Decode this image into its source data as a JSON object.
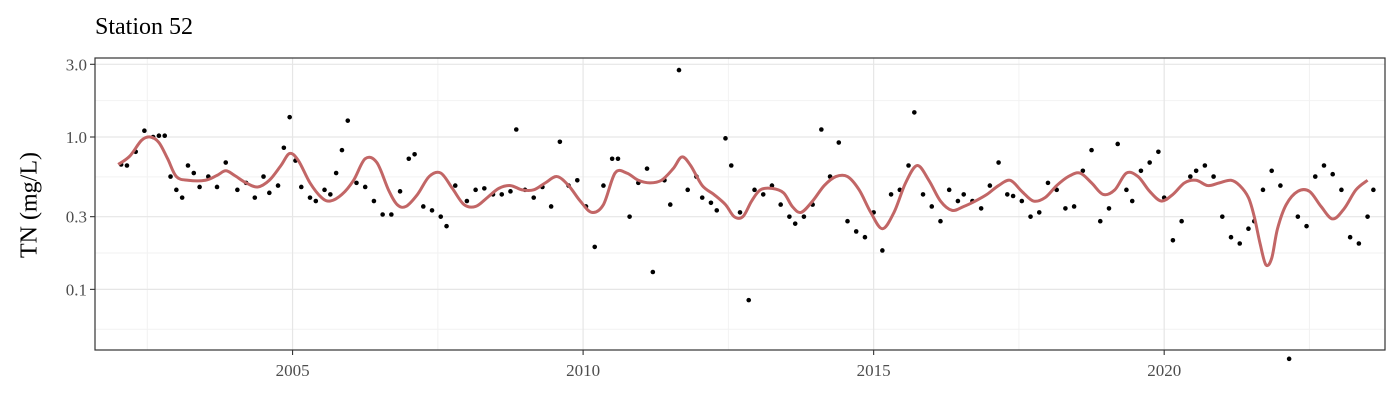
{
  "chart_data": {
    "type": "scatter",
    "title": "Station 52",
    "ylabel": "TN (mg/L)",
    "xlabel": "",
    "y_scale": "log",
    "ylim": [
      0.04,
      3.3
    ],
    "xlim": [
      2001.6,
      2023.8
    ],
    "y_ticks": [
      3.0,
      1.0,
      0.3,
      0.1
    ],
    "y_tick_labels": [
      "3.0",
      "1.0",
      "0.3",
      "0.1"
    ],
    "x_ticks": [
      2005,
      2010,
      2015,
      2020
    ],
    "x_tick_labels": [
      "2005",
      "2010",
      "2015",
      "2020"
    ],
    "grid": true,
    "series": [
      {
        "type": "points",
        "color": "#000000",
        "points": [
          [
            2002.05,
            0.66
          ],
          [
            2002.15,
            0.65
          ],
          [
            2002.3,
            0.8
          ],
          [
            2002.45,
            1.1
          ],
          [
            2002.6,
            1.0
          ],
          [
            2002.7,
            1.02
          ],
          [
            2002.8,
            1.02
          ],
          [
            2002.9,
            0.55
          ],
          [
            2003.0,
            0.45
          ],
          [
            2003.1,
            0.4
          ],
          [
            2003.2,
            0.65
          ],
          [
            2003.3,
            0.58
          ],
          [
            2003.4,
            0.47
          ],
          [
            2003.55,
            0.55
          ],
          [
            2003.7,
            0.47
          ],
          [
            2003.85,
            0.68
          ],
          [
            2004.05,
            0.45
          ],
          [
            2004.2,
            0.5
          ],
          [
            2004.35,
            0.4
          ],
          [
            2004.5,
            0.55
          ],
          [
            2004.6,
            0.43
          ],
          [
            2004.75,
            0.48
          ],
          [
            2004.85,
            0.85
          ],
          [
            2004.95,
            1.35
          ],
          [
            2005.05,
            0.7
          ],
          [
            2005.15,
            0.47
          ],
          [
            2005.3,
            0.4
          ],
          [
            2005.4,
            0.38
          ],
          [
            2005.55,
            0.45
          ],
          [
            2005.65,
            0.42
          ],
          [
            2005.75,
            0.58
          ],
          [
            2005.85,
            0.82
          ],
          [
            2005.95,
            1.28
          ],
          [
            2006.1,
            0.5
          ],
          [
            2006.25,
            0.47
          ],
          [
            2006.4,
            0.38
          ],
          [
            2006.55,
            0.31
          ],
          [
            2006.7,
            0.31
          ],
          [
            2006.85,
            0.44
          ],
          [
            2007.0,
            0.72
          ],
          [
            2007.1,
            0.77
          ],
          [
            2007.25,
            0.35
          ],
          [
            2007.4,
            0.33
          ],
          [
            2007.55,
            0.3
          ],
          [
            2007.65,
            0.26
          ],
          [
            2007.8,
            0.48
          ],
          [
            2008.0,
            0.38
          ],
          [
            2008.15,
            0.45
          ],
          [
            2008.3,
            0.46
          ],
          [
            2008.45,
            0.42
          ],
          [
            2008.6,
            0.42
          ],
          [
            2008.75,
            0.44
          ],
          [
            2008.85,
            1.12
          ],
          [
            2009.0,
            0.45
          ],
          [
            2009.15,
            0.4
          ],
          [
            2009.3,
            0.47
          ],
          [
            2009.45,
            0.35
          ],
          [
            2009.6,
            0.93
          ],
          [
            2009.75,
            0.48
          ],
          [
            2009.9,
            0.52
          ],
          [
            2010.05,
            0.35
          ],
          [
            2010.2,
            0.19
          ],
          [
            2010.35,
            0.48
          ],
          [
            2010.5,
            0.72
          ],
          [
            2010.6,
            0.72
          ],
          [
            2010.8,
            0.3
          ],
          [
            2010.95,
            0.5
          ],
          [
            2011.1,
            0.62
          ],
          [
            2011.2,
            0.13
          ],
          [
            2011.4,
            0.52
          ],
          [
            2011.5,
            0.36
          ],
          [
            2011.65,
            2.75
          ],
          [
            2011.8,
            0.45
          ],
          [
            2011.95,
            0.55
          ],
          [
            2012.05,
            0.4
          ],
          [
            2012.2,
            0.37
          ],
          [
            2012.3,
            0.33
          ],
          [
            2012.45,
            0.98
          ],
          [
            2012.55,
            0.65
          ],
          [
            2012.7,
            0.32
          ],
          [
            2012.85,
            0.085
          ],
          [
            2012.95,
            0.45
          ],
          [
            2013.1,
            0.42
          ],
          [
            2013.25,
            0.48
          ],
          [
            2013.4,
            0.36
          ],
          [
            2013.55,
            0.3
          ],
          [
            2013.65,
            0.27
          ],
          [
            2013.8,
            0.3
          ],
          [
            2013.95,
            0.36
          ],
          [
            2014.1,
            1.12
          ],
          [
            2014.25,
            0.55
          ],
          [
            2014.4,
            0.92
          ],
          [
            2014.55,
            0.28
          ],
          [
            2014.7,
            0.24
          ],
          [
            2014.85,
            0.22
          ],
          [
            2015.0,
            0.32
          ],
          [
            2015.15,
            0.18
          ],
          [
            2015.3,
            0.42
          ],
          [
            2015.45,
            0.45
          ],
          [
            2015.6,
            0.65
          ],
          [
            2015.7,
            1.45
          ],
          [
            2015.85,
            0.42
          ],
          [
            2016.0,
            0.35
          ],
          [
            2016.15,
            0.28
          ],
          [
            2016.3,
            0.45
          ],
          [
            2016.45,
            0.38
          ],
          [
            2016.55,
            0.42
          ],
          [
            2016.7,
            0.38
          ],
          [
            2016.85,
            0.34
          ],
          [
            2017.0,
            0.48
          ],
          [
            2017.15,
            0.68
          ],
          [
            2017.3,
            0.42
          ],
          [
            2017.4,
            0.41
          ],
          [
            2017.55,
            0.38
          ],
          [
            2017.7,
            0.3
          ],
          [
            2017.85,
            0.32
          ],
          [
            2018.0,
            0.5
          ],
          [
            2018.15,
            0.45
          ],
          [
            2018.3,
            0.34
          ],
          [
            2018.45,
            0.35
          ],
          [
            2018.6,
            0.6
          ],
          [
            2018.75,
            0.82
          ],
          [
            2018.9,
            0.28
          ],
          [
            2019.05,
            0.34
          ],
          [
            2019.2,
            0.9
          ],
          [
            2019.35,
            0.45
          ],
          [
            2019.45,
            0.38
          ],
          [
            2019.6,
            0.6
          ],
          [
            2019.75,
            0.68
          ],
          [
            2019.9,
            0.8
          ],
          [
            2020.0,
            0.4
          ],
          [
            2020.15,
            0.21
          ],
          [
            2020.3,
            0.28
          ],
          [
            2020.45,
            0.55
          ],
          [
            2020.55,
            0.6
          ],
          [
            2020.7,
            0.65
          ],
          [
            2020.85,
            0.55
          ],
          [
            2021.0,
            0.3
          ],
          [
            2021.15,
            0.22
          ],
          [
            2021.3,
            0.2
          ],
          [
            2021.45,
            0.25
          ],
          [
            2021.55,
            0.28
          ],
          [
            2021.7,
            0.45
          ],
          [
            2021.85,
            0.6
          ],
          [
            2022.0,
            0.48
          ],
          [
            2022.15,
            0.035
          ],
          [
            2022.3,
            0.3
          ],
          [
            2022.45,
            0.26
          ],
          [
            2022.6,
            0.55
          ],
          [
            2022.75,
            0.65
          ],
          [
            2022.9,
            0.57
          ],
          [
            2023.05,
            0.45
          ],
          [
            2023.2,
            0.22
          ],
          [
            2023.35,
            0.2
          ],
          [
            2023.5,
            0.3
          ],
          [
            2023.6,
            0.45
          ]
        ]
      },
      {
        "type": "smooth_line",
        "color": "#c26666",
        "points": [
          [
            2002.0,
            0.66
          ],
          [
            2002.2,
            0.75
          ],
          [
            2002.4,
            0.95
          ],
          [
            2002.55,
            1.0
          ],
          [
            2002.7,
            0.92
          ],
          [
            2002.85,
            0.72
          ],
          [
            2003.0,
            0.55
          ],
          [
            2003.2,
            0.52
          ],
          [
            2003.5,
            0.52
          ],
          [
            2003.7,
            0.56
          ],
          [
            2003.85,
            0.6
          ],
          [
            2004.0,
            0.56
          ],
          [
            2004.2,
            0.5
          ],
          [
            2004.4,
            0.47
          ],
          [
            2004.6,
            0.52
          ],
          [
            2004.8,
            0.65
          ],
          [
            2004.95,
            0.78
          ],
          [
            2005.1,
            0.7
          ],
          [
            2005.3,
            0.5
          ],
          [
            2005.5,
            0.4
          ],
          [
            2005.65,
            0.38
          ],
          [
            2005.85,
            0.42
          ],
          [
            2006.05,
            0.52
          ],
          [
            2006.25,
            0.72
          ],
          [
            2006.45,
            0.68
          ],
          [
            2006.65,
            0.45
          ],
          [
            2006.8,
            0.36
          ],
          [
            2006.95,
            0.35
          ],
          [
            2007.15,
            0.42
          ],
          [
            2007.35,
            0.55
          ],
          [
            2007.55,
            0.58
          ],
          [
            2007.75,
            0.46
          ],
          [
            2007.95,
            0.36
          ],
          [
            2008.15,
            0.35
          ],
          [
            2008.35,
            0.4
          ],
          [
            2008.55,
            0.46
          ],
          [
            2008.75,
            0.48
          ],
          [
            2008.95,
            0.45
          ],
          [
            2009.15,
            0.45
          ],
          [
            2009.35,
            0.5
          ],
          [
            2009.55,
            0.55
          ],
          [
            2009.75,
            0.48
          ],
          [
            2009.95,
            0.38
          ],
          [
            2010.15,
            0.32
          ],
          [
            2010.35,
            0.36
          ],
          [
            2010.55,
            0.58
          ],
          [
            2010.75,
            0.58
          ],
          [
            2010.95,
            0.52
          ],
          [
            2011.15,
            0.5
          ],
          [
            2011.35,
            0.52
          ],
          [
            2011.55,
            0.62
          ],
          [
            2011.7,
            0.74
          ],
          [
            2011.85,
            0.65
          ],
          [
            2012.05,
            0.48
          ],
          [
            2012.25,
            0.42
          ],
          [
            2012.45,
            0.36
          ],
          [
            2012.6,
            0.3
          ],
          [
            2012.75,
            0.3
          ],
          [
            2012.9,
            0.38
          ],
          [
            2013.05,
            0.45
          ],
          [
            2013.25,
            0.46
          ],
          [
            2013.45,
            0.43
          ],
          [
            2013.6,
            0.35
          ],
          [
            2013.75,
            0.32
          ],
          [
            2013.95,
            0.38
          ],
          [
            2014.15,
            0.48
          ],
          [
            2014.35,
            0.55
          ],
          [
            2014.55,
            0.55
          ],
          [
            2014.75,
            0.45
          ],
          [
            2014.95,
            0.32
          ],
          [
            2015.15,
            0.25
          ],
          [
            2015.35,
            0.32
          ],
          [
            2015.55,
            0.5
          ],
          [
            2015.75,
            0.65
          ],
          [
            2015.95,
            0.52
          ],
          [
            2016.15,
            0.38
          ],
          [
            2016.35,
            0.33
          ],
          [
            2016.55,
            0.35
          ],
          [
            2016.75,
            0.38
          ],
          [
            2016.95,
            0.42
          ],
          [
            2017.15,
            0.48
          ],
          [
            2017.35,
            0.52
          ],
          [
            2017.55,
            0.44
          ],
          [
            2017.75,
            0.38
          ],
          [
            2017.95,
            0.4
          ],
          [
            2018.15,
            0.48
          ],
          [
            2018.35,
            0.55
          ],
          [
            2018.55,
            0.58
          ],
          [
            2018.75,
            0.5
          ],
          [
            2018.95,
            0.42
          ],
          [
            2019.15,
            0.45
          ],
          [
            2019.35,
            0.58
          ],
          [
            2019.55,
            0.55
          ],
          [
            2019.75,
            0.44
          ],
          [
            2019.95,
            0.38
          ],
          [
            2020.15,
            0.42
          ],
          [
            2020.35,
            0.5
          ],
          [
            2020.55,
            0.52
          ],
          [
            2020.75,
            0.48
          ],
          [
            2020.95,
            0.5
          ],
          [
            2021.15,
            0.52
          ],
          [
            2021.3,
            0.48
          ],
          [
            2021.45,
            0.4
          ],
          [
            2021.55,
            0.3
          ],
          [
            2021.65,
            0.2
          ],
          [
            2021.75,
            0.145
          ],
          [
            2021.85,
            0.16
          ],
          [
            2021.95,
            0.25
          ],
          [
            2022.1,
            0.36
          ],
          [
            2022.3,
            0.44
          ],
          [
            2022.5,
            0.44
          ],
          [
            2022.7,
            0.35
          ],
          [
            2022.9,
            0.29
          ],
          [
            2023.1,
            0.34
          ],
          [
            2023.3,
            0.45
          ],
          [
            2023.5,
            0.52
          ]
        ]
      }
    ]
  }
}
